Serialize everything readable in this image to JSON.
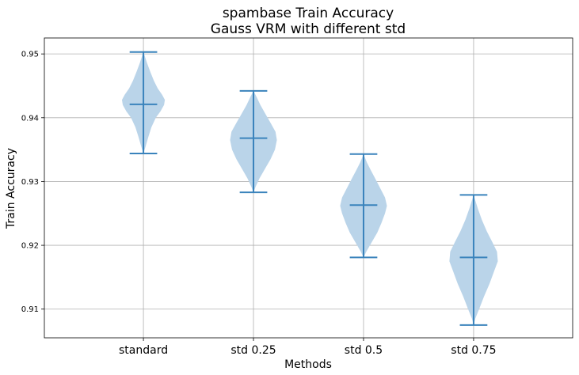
{
  "chart_data": {
    "type": "violin",
    "title": [
      "spambase Train Accuracy",
      "Gauss VRM with different std"
    ],
    "xlabel": "Methods",
    "ylabel": "Train Accuracy",
    "categories": [
      "standard",
      "std 0.25",
      "std 0.5",
      "std 0.75"
    ],
    "ylim": [
      0.9055,
      0.9525
    ],
    "yticks": [
      0.91,
      0.92,
      0.93,
      0.94,
      0.95
    ],
    "ytick_labels": [
      "0.91",
      "0.92",
      "0.93",
      "0.94",
      "0.95"
    ],
    "grid": true,
    "violins": [
      {
        "category": "standard",
        "min": 0.9344,
        "max": 0.9503,
        "mean": 0.9421,
        "density": [
          [
            0.9344,
            0.0
          ],
          [
            0.9355,
            0.08
          ],
          [
            0.937,
            0.18
          ],
          [
            0.9385,
            0.29
          ],
          [
            0.94,
            0.45
          ],
          [
            0.941,
            0.62
          ],
          [
            0.942,
            0.75
          ],
          [
            0.9428,
            0.78
          ],
          [
            0.9436,
            0.68
          ],
          [
            0.9446,
            0.52
          ],
          [
            0.9458,
            0.38
          ],
          [
            0.9472,
            0.25
          ],
          [
            0.9486,
            0.13
          ],
          [
            0.9503,
            0.0
          ]
        ]
      },
      {
        "category": "std 0.25",
        "min": 0.9283,
        "max": 0.9442,
        "mean": 0.9368,
        "density": [
          [
            0.9283,
            0.0
          ],
          [
            0.9292,
            0.08
          ],
          [
            0.9305,
            0.22
          ],
          [
            0.932,
            0.42
          ],
          [
            0.9335,
            0.62
          ],
          [
            0.935,
            0.78
          ],
          [
            0.9365,
            0.85
          ],
          [
            0.9378,
            0.8
          ],
          [
            0.9392,
            0.62
          ],
          [
            0.9407,
            0.42
          ],
          [
            0.942,
            0.25
          ],
          [
            0.9432,
            0.12
          ],
          [
            0.9442,
            0.0
          ]
        ]
      },
      {
        "category": "std 0.5",
        "min": 0.9181,
        "max": 0.9343,
        "mean": 0.9263,
        "density": [
          [
            0.9181,
            0.0
          ],
          [
            0.919,
            0.1
          ],
          [
            0.9205,
            0.3
          ],
          [
            0.922,
            0.5
          ],
          [
            0.9235,
            0.65
          ],
          [
            0.925,
            0.78
          ],
          [
            0.9262,
            0.85
          ],
          [
            0.9275,
            0.78
          ],
          [
            0.929,
            0.6
          ],
          [
            0.9305,
            0.42
          ],
          [
            0.9318,
            0.26
          ],
          [
            0.933,
            0.12
          ],
          [
            0.9343,
            0.0
          ]
        ]
      },
      {
        "category": "std 0.75",
        "min": 0.9075,
        "max": 0.9279,
        "mean": 0.9181,
        "density": [
          [
            0.9075,
            0.0
          ],
          [
            0.9085,
            0.06
          ],
          [
            0.91,
            0.2
          ],
          [
            0.912,
            0.38
          ],
          [
            0.914,
            0.58
          ],
          [
            0.916,
            0.75
          ],
          [
            0.9175,
            0.88
          ],
          [
            0.919,
            0.85
          ],
          [
            0.9205,
            0.68
          ],
          [
            0.9222,
            0.48
          ],
          [
            0.924,
            0.3
          ],
          [
            0.9258,
            0.15
          ],
          [
            0.9279,
            0.0
          ]
        ]
      }
    ],
    "colors": {
      "body": "#bad4e9",
      "line": "#3a83bc",
      "grid": "#b0b0b0",
      "axis": "#000000"
    }
  }
}
